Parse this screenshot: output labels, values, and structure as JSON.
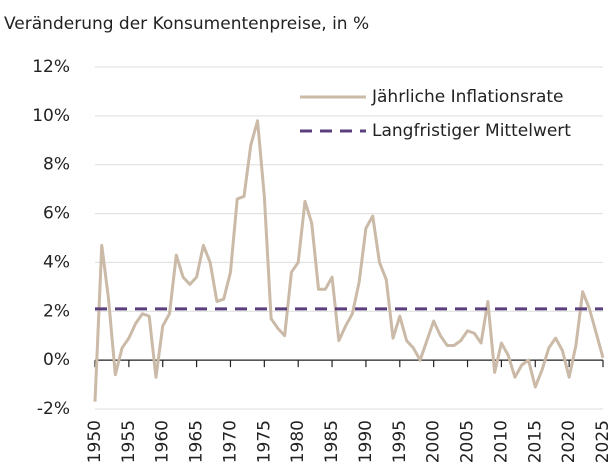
{
  "chart_data": {
    "type": "line",
    "title": "Veränderung der Konsumentenpreise, in %",
    "x": [
      1950,
      1951,
      1952,
      1953,
      1954,
      1955,
      1956,
      1957,
      1958,
      1959,
      1960,
      1961,
      1962,
      1963,
      1964,
      1965,
      1966,
      1967,
      1968,
      1969,
      1970,
      1971,
      1972,
      1973,
      1974,
      1975,
      1976,
      1977,
      1978,
      1979,
      1980,
      1981,
      1982,
      1983,
      1984,
      1985,
      1986,
      1987,
      1988,
      1989,
      1990,
      1991,
      1992,
      1993,
      1994,
      1995,
      1996,
      1997,
      1998,
      1999,
      2000,
      2001,
      2002,
      2003,
      2004,
      2005,
      2006,
      2007,
      2008,
      2009,
      2010,
      2011,
      2012,
      2013,
      2014,
      2015,
      2016,
      2017,
      2018,
      2019,
      2020,
      2021,
      2022,
      2023,
      2024,
      2025
    ],
    "series": [
      {
        "name": "Jährliche Inflationsrate",
        "color": "#cbbaa7",
        "values": [
          -1.7,
          4.7,
          2.5,
          -0.6,
          0.5,
          0.9,
          1.5,
          1.9,
          1.8,
          -0.7,
          1.4,
          1.9,
          4.3,
          3.4,
          3.1,
          3.4,
          4.7,
          4.0,
          2.4,
          2.5,
          3.6,
          6.6,
          6.7,
          8.8,
          9.8,
          6.7,
          1.7,
          1.3,
          1.0,
          3.6,
          4.0,
          6.5,
          5.6,
          2.9,
          2.9,
          3.4,
          0.8,
          1.4,
          1.9,
          3.2,
          5.4,
          5.9,
          4.0,
          3.3,
          0.9,
          1.8,
          0.8,
          0.5,
          0.0,
          0.8,
          1.6,
          1.0,
          0.6,
          0.6,
          0.8,
          1.2,
          1.1,
          0.7,
          2.4,
          -0.5,
          0.7,
          0.2,
          -0.7,
          -0.2,
          0.0,
          -1.1,
          -0.4,
          0.5,
          0.9,
          0.4,
          -0.7,
          0.6,
          2.8,
          2.1,
          1.1,
          0.1
        ]
      },
      {
        "name": "Langfristiger Mittelwert",
        "color": "#5b3f7d",
        "dashed": true,
        "value": 2.1
      }
    ],
    "xlim": [
      1950,
      2025
    ],
    "xticks": [
      1950,
      1955,
      1960,
      1965,
      1970,
      1975,
      1980,
      1985,
      1990,
      1995,
      2000,
      2005,
      2010,
      2015,
      2020,
      2025
    ],
    "ylim": [
      -2,
      12
    ],
    "yticks": [
      {
        "value": -2,
        "label": "-2%"
      },
      {
        "value": 0,
        "label": "0%"
      },
      {
        "value": 2,
        "label": "2%"
      },
      {
        "value": 4,
        "label": "4%"
      },
      {
        "value": 6,
        "label": "6%"
      },
      {
        "value": 8,
        "label": "8%"
      },
      {
        "value": 10,
        "label": "10%"
      },
      {
        "value": 12,
        "label": "12%"
      }
    ],
    "grid": true,
    "legend": "top-right"
  }
}
